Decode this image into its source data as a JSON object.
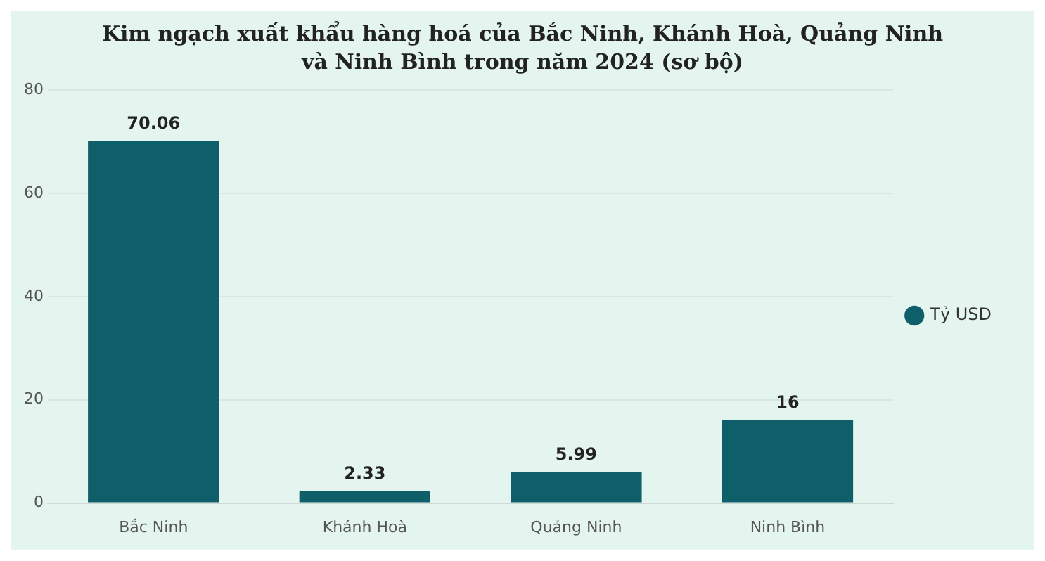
{
  "chart_data": {
    "type": "bar",
    "title": "Kim ngạch xuất khẩu hàng hoá của Bắc Ninh, Khánh Hoà, Quảng Ninh và Ninh Bình trong năm 2024 (sơ bộ)",
    "categories": [
      "Bắc Ninh",
      "Khánh Hoà",
      "Quảng Ninh",
      "Ninh Bình"
    ],
    "series": [
      {
        "name": "Tỷ USD",
        "color": "#0e5f6a",
        "values": [
          70.06,
          2.33,
          5.99,
          16
        ]
      }
    ],
    "ylim": [
      0,
      80
    ],
    "yticks": [
      0,
      20,
      40,
      60,
      80
    ],
    "grid": "y",
    "legend": "right",
    "data_labels": true
  }
}
